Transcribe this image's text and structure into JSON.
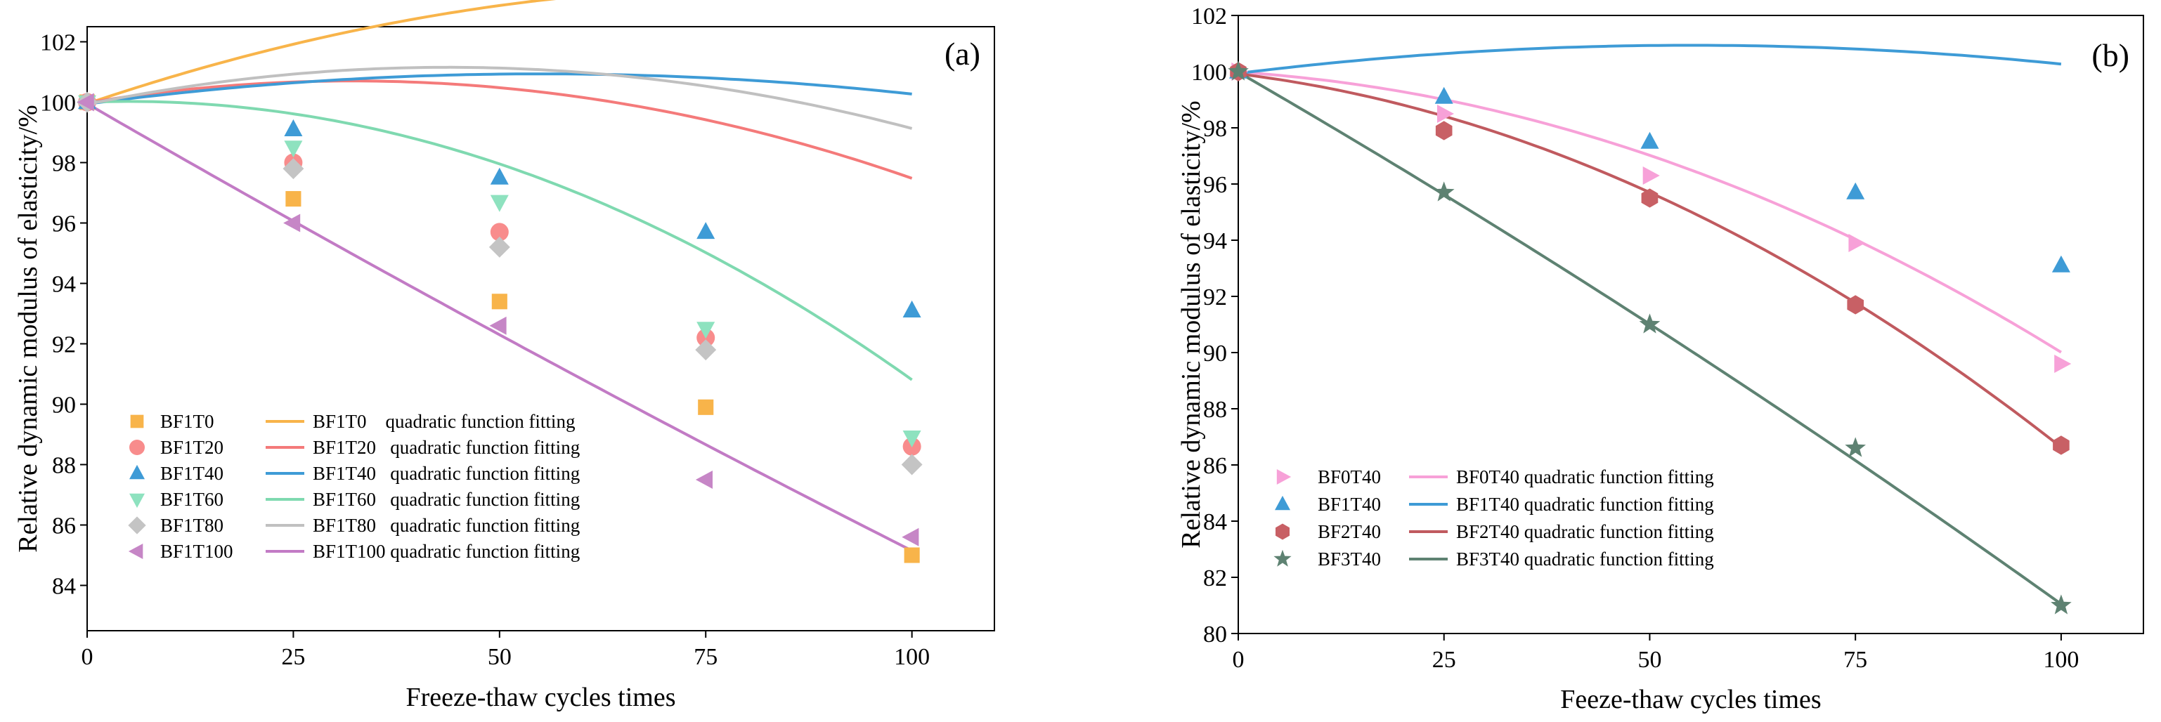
{
  "figure": {
    "panels": [
      "a",
      "b"
    ]
  },
  "chart_data": [
    {
      "type": "scatter",
      "panel_label": "(a)",
      "title": "",
      "xlabel": "Freeze-thaw cycles times",
      "ylabel": "Relative dynamic modulus of elasticity/%",
      "xlim": [
        0,
        110
      ],
      "ylim": [
        82.5,
        102.5
      ],
      "xticks": [
        0,
        25,
        50,
        75,
        100
      ],
      "yticks": [
        84,
        86,
        88,
        90,
        92,
        94,
        96,
        98,
        100,
        102
      ],
      "legend_position": "bottom-left",
      "x": [
        0,
        25,
        50,
        75,
        100
      ],
      "series": [
        {
          "name": "BF1T0",
          "fit_label": "BF1T0    quadratic function fitting",
          "color": "#F8B44A",
          "fit_color": "#F8B44A",
          "marker": "square",
          "values": [
            100.0,
            96.8,
            93.4,
            89.9,
            85.0
          ],
          "fit": [
            -0.00055,
            0.0925,
            99.95
          ]
        },
        {
          "name": "BF1T20",
          "fit_label": "BF1T20   quadratic function fitting",
          "color": "#F88C8C",
          "fit_color": "#F47A7A",
          "marker": "circle",
          "values": [
            100.0,
            98.0,
            95.7,
            92.2,
            88.6
          ],
          "fit": [
            -0.0007,
            0.045,
            99.98
          ]
        },
        {
          "name": "BF1T40",
          "fit_label": "BF1T40   quadratic function fitting",
          "color": "#3E9BD6",
          "fit_color": "#3E9BD6",
          "marker": "triangle-up",
          "values": [
            100.0,
            99.1,
            97.5,
            95.7,
            93.1
          ],
          "fit": [
            -0.00033,
            0.0363,
            99.94
          ]
        },
        {
          "name": "BF1T60",
          "fit_label": "BF1T60   quadratic function fitting",
          "color": "#8EE2BF",
          "fit_color": "#7FD9B0",
          "marker": "triangle-down",
          "values": [
            100.0,
            98.5,
            96.7,
            92.5,
            88.9
          ],
          "fit": [
            -0.00102,
            0.0101,
            100.0
          ]
        },
        {
          "name": "BF1T80",
          "fit_label": "BF1T80   quadratic function fitting",
          "color": "#C4C4C4",
          "fit_color": "#C0C0C0",
          "marker": "diamond",
          "values": [
            100.0,
            97.8,
            95.2,
            91.8,
            88.0
          ],
          "fit": [
            -0.00064,
            0.056,
            99.93
          ]
        },
        {
          "name": "BF1T100",
          "fit_label": "BF1T100 quadratic function fitting",
          "color": "#C686C6",
          "fit_color": "#C27BC5",
          "marker": "triangle-left",
          "values": [
            100.0,
            96.0,
            92.6,
            87.5,
            85.6
          ],
          "fit": [
            0.0001,
            -0.158,
            99.95
          ]
        }
      ]
    },
    {
      "type": "scatter",
      "panel_label": "(b)",
      "title": "",
      "xlabel": "Feeze-thaw cycles times",
      "ylabel": "Relative dynamic modulus of elasticity/%",
      "xlim": [
        0,
        110
      ],
      "ylim": [
        80,
        102
      ],
      "xticks": [
        0,
        25,
        50,
        75,
        100
      ],
      "yticks": [
        80,
        82,
        84,
        86,
        88,
        90,
        92,
        94,
        96,
        98,
        100,
        102
      ],
      "legend_position": "bottom-left",
      "x": [
        0,
        25,
        50,
        75,
        100
      ],
      "series": [
        {
          "name": "BF0T40",
          "fit_label": "BF0T40 quadratic function fitting",
          "color": "#F7A1D8",
          "fit_color": "#F7A1D8",
          "marker": "triangle-right",
          "values": [
            100.0,
            98.5,
            96.3,
            93.9,
            89.6
          ],
          "fit": [
            -0.00081,
            -0.0187,
            99.98
          ]
        },
        {
          "name": "BF1T40",
          "fit_label": "BF1T40 quadratic function fitting",
          "color": "#3E9BD6",
          "fit_color": "#3E9BD6",
          "marker": "triangle-up",
          "values": [
            100.0,
            99.1,
            97.5,
            95.7,
            93.1
          ],
          "fit": [
            -0.00033,
            0.0363,
            99.94
          ]
        },
        {
          "name": "BF2T40",
          "fit_label": "BF2T40 quadratic function fitting",
          "color": "#C86065",
          "fit_color": "#C05A5F",
          "marker": "hexagon",
          "values": [
            100.0,
            97.9,
            95.5,
            91.7,
            86.7
          ],
          "fit": [
            -0.00097,
            -0.0359,
            99.92
          ]
        },
        {
          "name": "BF3T40",
          "fit_label": "BF3T40 quadratic function fitting",
          "color": "#5E8272",
          "fit_color": "#5E8272",
          "marker": "star",
          "values": [
            100.0,
            95.7,
            91.0,
            86.6,
            81.0
          ],
          "fit": [
            -0.0002,
            -0.1693,
            99.98
          ]
        }
      ]
    }
  ]
}
